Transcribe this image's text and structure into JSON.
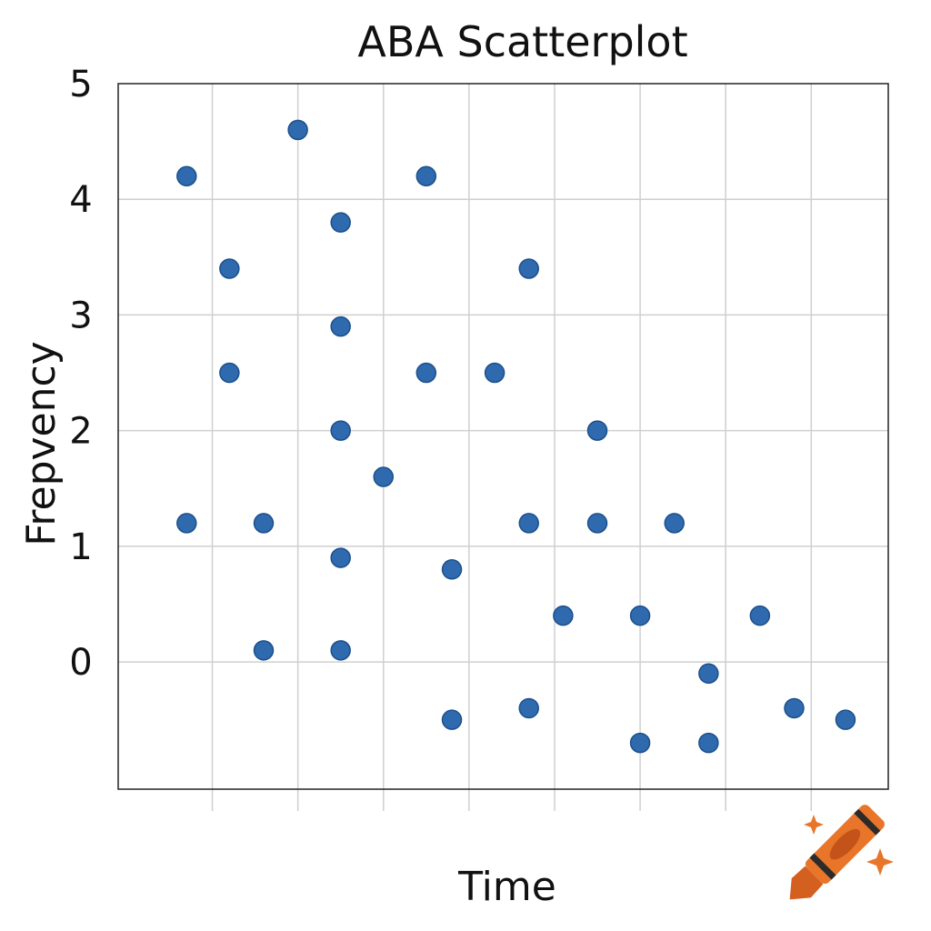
{
  "chart_data": {
    "type": "scatter",
    "title": "ABA Scatterplot",
    "xlabel": "Time",
    "ylabel": "Frepvency",
    "ylim": [
      -1.1,
      5
    ],
    "xlim": [
      0,
      9
    ],
    "y_ticks": [
      "0",
      "1",
      "2",
      "3",
      "4",
      "5"
    ],
    "grid": true,
    "legend": "none",
    "colors": {
      "points": "#2e6aad",
      "crayon": "#e8752a"
    },
    "series": [
      {
        "points": [
          {
            "x": 0.8,
            "y": 4.2
          },
          {
            "x": 0.8,
            "y": 1.2
          },
          {
            "x": 1.3,
            "y": 3.4
          },
          {
            "x": 1.3,
            "y": 2.5
          },
          {
            "x": 1.7,
            "y": 1.2
          },
          {
            "x": 1.7,
            "y": 0.1
          },
          {
            "x": 2.1,
            "y": 4.6
          },
          {
            "x": 2.6,
            "y": 3.8
          },
          {
            "x": 2.6,
            "y": 2.9
          },
          {
            "x": 2.6,
            "y": 2.0
          },
          {
            "x": 2.6,
            "y": 0.9
          },
          {
            "x": 2.6,
            "y": 0.1
          },
          {
            "x": 3.1,
            "y": 1.6
          },
          {
            "x": 3.6,
            "y": 4.2
          },
          {
            "x": 3.6,
            "y": 2.5
          },
          {
            "x": 3.9,
            "y": 0.8
          },
          {
            "x": 3.9,
            "y": -0.5
          },
          {
            "x": 4.4,
            "y": 2.5
          },
          {
            "x": 4.8,
            "y": 3.4
          },
          {
            "x": 4.8,
            "y": 1.2
          },
          {
            "x": 4.8,
            "y": -0.4
          },
          {
            "x": 5.2,
            "y": 0.4
          },
          {
            "x": 5.6,
            "y": 2.0
          },
          {
            "x": 5.6,
            "y": 1.2
          },
          {
            "x": 6.1,
            "y": 0.4
          },
          {
            "x": 6.1,
            "y": -0.7
          },
          {
            "x": 6.5,
            "y": 1.2
          },
          {
            "x": 6.9,
            "y": -0.1
          },
          {
            "x": 6.9,
            "y": -0.7
          },
          {
            "x": 7.5,
            "y": 0.4
          },
          {
            "x": 7.9,
            "y": -0.4
          },
          {
            "x": 8.5,
            "y": -0.5
          }
        ]
      }
    ]
  }
}
